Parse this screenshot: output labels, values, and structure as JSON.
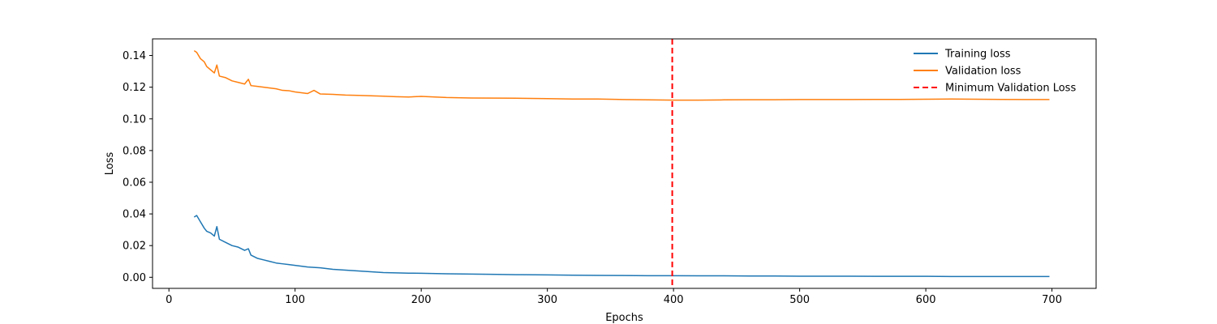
{
  "chart_data": {
    "type": "line",
    "title": "",
    "xlabel": "Epochs",
    "ylabel": "Loss",
    "xlim": [
      -13,
      735
    ],
    "ylim": [
      -0.007,
      0.1505
    ],
    "xticks": [
      0,
      100,
      200,
      300,
      400,
      500,
      600,
      700
    ],
    "xtick_labels": [
      "0",
      "100",
      "200",
      "300",
      "400",
      "500",
      "600",
      "700"
    ],
    "yticks": [
      0.0,
      0.02,
      0.04,
      0.06,
      0.08,
      0.1,
      0.12,
      0.14
    ],
    "ytick_labels": [
      "0.00",
      "0.02",
      "0.04",
      "0.06",
      "0.08",
      "0.10",
      "0.12",
      "0.14"
    ],
    "grid": false,
    "legend_position": "top-right",
    "series": [
      {
        "name": "Training loss",
        "color": "#1f77b4",
        "style": "solid",
        "x": [
          20,
          22,
          25,
          28,
          30,
          33,
          36,
          38,
          40,
          45,
          50,
          55,
          60,
          63,
          65,
          70,
          75,
          80,
          85,
          90,
          95,
          100,
          110,
          120,
          130,
          140,
          150,
          160,
          170,
          180,
          190,
          200,
          220,
          240,
          260,
          280,
          300,
          320,
          340,
          360,
          380,
          400,
          420,
          440,
          460,
          480,
          500,
          520,
          540,
          560,
          580,
          600,
          620,
          640,
          660,
          680,
          698
        ],
        "y": [
          0.038,
          0.039,
          0.035,
          0.031,
          0.029,
          0.028,
          0.026,
          0.032,
          0.024,
          0.022,
          0.02,
          0.019,
          0.017,
          0.018,
          0.014,
          0.012,
          0.011,
          0.01,
          0.009,
          0.0085,
          0.008,
          0.0075,
          0.0065,
          0.006,
          0.005,
          0.0045,
          0.004,
          0.0035,
          0.003,
          0.0028,
          0.0026,
          0.0025,
          0.0022,
          0.002,
          0.0018,
          0.0016,
          0.0015,
          0.0013,
          0.0012,
          0.0011,
          0.001,
          0.001,
          0.0009,
          0.0009,
          0.0008,
          0.0008,
          0.0007,
          0.0007,
          0.0007,
          0.0006,
          0.0006,
          0.0006,
          0.0005,
          0.0005,
          0.0005,
          0.0005,
          0.0005
        ]
      },
      {
        "name": "Validation loss",
        "color": "#ff7f0e",
        "style": "solid",
        "x": [
          20,
          22,
          25,
          28,
          30,
          33,
          36,
          38,
          40,
          45,
          50,
          55,
          60,
          63,
          65,
          70,
          75,
          80,
          85,
          90,
          95,
          100,
          110,
          115,
          120,
          130,
          140,
          150,
          160,
          170,
          180,
          190,
          200,
          220,
          240,
          260,
          280,
          300,
          320,
          340,
          360,
          380,
          400,
          420,
          440,
          460,
          480,
          500,
          520,
          540,
          560,
          580,
          600,
          620,
          640,
          660,
          680,
          698
        ],
        "y": [
          0.143,
          0.142,
          0.138,
          0.136,
          0.133,
          0.131,
          0.129,
          0.134,
          0.127,
          0.126,
          0.124,
          0.123,
          0.122,
          0.125,
          0.121,
          0.1205,
          0.12,
          0.1195,
          0.119,
          0.118,
          0.1178,
          0.117,
          0.116,
          0.118,
          0.1157,
          0.1155,
          0.115,
          0.1148,
          0.1146,
          0.1143,
          0.114,
          0.1138,
          0.1142,
          0.1135,
          0.1132,
          0.1131,
          0.113,
          0.1128,
          0.1125,
          0.1125,
          0.1122,
          0.112,
          0.1118,
          0.1118,
          0.112,
          0.1121,
          0.1121,
          0.1122,
          0.1122,
          0.1122,
          0.1123,
          0.1123,
          0.1124,
          0.1125,
          0.1124,
          0.1123,
          0.1122,
          0.1122
        ]
      },
      {
        "name": "Minimum Validation Loss",
        "color": "#ff0000",
        "style": "dashed",
        "type": "vline",
        "x": 399
      }
    ]
  }
}
